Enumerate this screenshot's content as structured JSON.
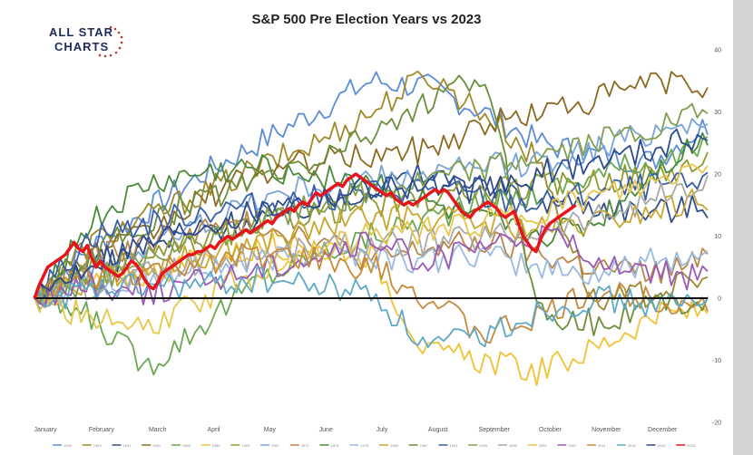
{
  "chart_data": {
    "type": "line",
    "title": "S&P 500 Pre Election Years vs 2023",
    "brand": {
      "line1": "ALL STAR",
      "line2": "CHARTS"
    },
    "x_months": [
      "January",
      "February",
      "March",
      "April",
      "May",
      "June",
      "July",
      "August",
      "September",
      "October",
      "November",
      "December"
    ],
    "y_ticks": [
      40,
      30,
      20,
      10,
      0,
      -10,
      -20
    ],
    "ylim": [
      -20,
      40
    ],
    "xlim": [
      0,
      12
    ],
    "zero_line": true,
    "highlight": {
      "name": "2023",
      "color": "#e8141b",
      "values": [
        0,
        2,
        3.5,
        5,
        5.5,
        6,
        6.5,
        7,
        8,
        9,
        8,
        7.5,
        8.5,
        6.5,
        5,
        6,
        5,
        4.5,
        4,
        3.5,
        4,
        5,
        6,
        5.5,
        4.5,
        3,
        2,
        1.5,
        2.5,
        4,
        4.5,
        5,
        5.5,
        6,
        6.5,
        7,
        7,
        7.5,
        7.5,
        8,
        8.5,
        8,
        9,
        9.5,
        10,
        9.5,
        10,
        10.5,
        11,
        10.5,
        11,
        11.5,
        12,
        12.5,
        12,
        13,
        13.5,
        14,
        14.5,
        14,
        15,
        15.5,
        15,
        16,
        17,
        16.5,
        17,
        17.5,
        18,
        18.5,
        18,
        19,
        19.5,
        20,
        19.5,
        19,
        18.5,
        18,
        17.5,
        17,
        16.5,
        17,
        16,
        15.5,
        15,
        15.5,
        15,
        15.5,
        16,
        16.5,
        17,
        17.5,
        17,
        17.5,
        17,
        16,
        15,
        14,
        13.5,
        13,
        14,
        14.5,
        15,
        15.5,
        15,
        14.5,
        13.5,
        13,
        13.5,
        14,
        12,
        10,
        9,
        8,
        7.5,
        9.5,
        11,
        12,
        12.5,
        13,
        13.5,
        14,
        14.5,
        15
      ]
    },
    "series": [
      {
        "name": "1939",
        "color": "#5b8dd6",
        "drift": [
          0,
          8,
          14,
          20,
          25,
          30,
          35,
          34,
          30,
          25,
          23,
          22,
          28
        ]
      },
      {
        "name": "1943",
        "color": "#a0892a",
        "drift": [
          0,
          9,
          13,
          17,
          21,
          25,
          30,
          36,
          30,
          22,
          -1,
          1,
          3
        ]
      },
      {
        "name": "1947",
        "color": "#2f4f8a",
        "drift": [
          0,
          5,
          8,
          11,
          13,
          15,
          18,
          20,
          18,
          16,
          15,
          14,
          15
        ]
      },
      {
        "name": "1951",
        "color": "#8a6a20",
        "drift": [
          0,
          7,
          10,
          16,
          20,
          22,
          23,
          24,
          28,
          30,
          32,
          35,
          34
        ]
      },
      {
        "name": "1955",
        "color": "#6aa84f",
        "drift": [
          0,
          -3,
          -11,
          -4,
          3,
          7,
          10,
          13,
          15,
          17,
          20,
          22,
          24
        ]
      },
      {
        "name": "1959",
        "color": "#f1c232",
        "drift": [
          0,
          2,
          4,
          6,
          8,
          9,
          7,
          -9,
          -10,
          -12,
          -8,
          -3,
          -2
        ]
      },
      {
        "name": "1963",
        "color": "#8e9b2f",
        "drift": [
          0,
          4,
          6,
          9,
          12,
          14,
          15,
          16,
          17,
          18,
          19,
          20,
          22
        ]
      },
      {
        "name": "1967",
        "color": "#7aa3d9",
        "drift": [
          0,
          4,
          8,
          12,
          16,
          18,
          19,
          20,
          21,
          22,
          24,
          27,
          29
        ]
      },
      {
        "name": "1971",
        "color": "#b88645",
        "drift": [
          0,
          6,
          9,
          11,
          12,
          10,
          6,
          8,
          9,
          7,
          5,
          4,
          6
        ]
      },
      {
        "name": "1975",
        "color": "#4a8a3a",
        "drift": [
          0,
          12,
          18,
          20,
          21,
          20,
          19,
          15,
          12,
          10,
          12,
          20,
          26
        ]
      },
      {
        "name": "1979",
        "color": "#9ab9e3",
        "drift": [
          0,
          2,
          3,
          5,
          6,
          8,
          7,
          6,
          7,
          5,
          4,
          6,
          7
        ]
      },
      {
        "name": "1983",
        "color": "#c9a62d",
        "drift": [
          0,
          3,
          5,
          7,
          9,
          11,
          13,
          13,
          12,
          11,
          12,
          14,
          16
        ]
      },
      {
        "name": "1987",
        "color": "#6b8f3a",
        "drift": [
          0,
          7,
          12,
          16,
          19,
          22,
          27,
          31,
          36,
          -2,
          -4,
          -1,
          0
        ]
      },
      {
        "name": "1991",
        "color": "#3a5ea8",
        "drift": [
          0,
          10,
          12,
          14,
          15,
          16,
          17,
          18,
          16,
          15,
          17,
          18,
          18
        ]
      },
      {
        "name": "1995",
        "color": "#7f9f4c",
        "drift": [
          0,
          3,
          6,
          9,
          12,
          15,
          17,
          19,
          21,
          23,
          25,
          27,
          30
        ]
      },
      {
        "name": "1999",
        "color": "#a9a9a9",
        "drift": [
          0,
          2,
          4,
          6,
          7,
          8,
          9,
          9,
          10,
          11,
          13,
          16,
          18
        ]
      },
      {
        "name": "2003",
        "color": "#e8c64a",
        "drift": [
          0,
          -3,
          -5,
          0,
          4,
          8,
          10,
          11,
          12,
          14,
          16,
          18,
          22
        ]
      },
      {
        "name": "2007",
        "color": "#9b59b6",
        "drift": [
          0,
          2,
          1,
          3,
          5,
          7,
          9,
          6,
          8,
          10,
          7,
          4,
          3
        ]
      },
      {
        "name": "2011",
        "color": "#c78a3b",
        "drift": [
          0,
          3,
          4,
          6,
          7,
          6,
          5,
          0,
          -6,
          -3,
          1,
          0,
          -1
        ]
      },
      {
        "name": "2015",
        "color": "#5da9c7",
        "drift": [
          0,
          1,
          2,
          2,
          3,
          2,
          1,
          -8,
          -6,
          -2,
          0,
          -1,
          -1
        ]
      },
      {
        "name": "2019",
        "color": "#2c4a90",
        "drift": [
          0,
          6,
          9,
          12,
          14,
          16,
          18,
          18,
          17,
          20,
          22,
          24,
          27
        ]
      }
    ],
    "legend_entries": [
      "1939",
      "1943",
      "1947",
      "1951",
      "1955",
      "1959",
      "1963",
      "1967",
      "1971",
      "1975",
      "1979",
      "1983",
      "1987",
      "1991",
      "1995",
      "1999",
      "2003",
      "2007",
      "2011",
      "2015",
      "2019",
      "2023"
    ]
  }
}
